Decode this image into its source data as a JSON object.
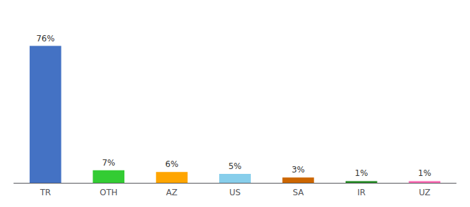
{
  "chart_data": {
    "type": "bar",
    "categories": [
      "TR",
      "OTH",
      "AZ",
      "US",
      "SA",
      "IR",
      "UZ"
    ],
    "values": [
      76,
      7,
      6,
      5,
      3,
      1,
      1
    ],
    "value_labels": [
      "76%",
      "7%",
      "6%",
      "5%",
      "3%",
      "1%",
      "1%"
    ],
    "colors": [
      "#4472C4",
      "#33CC33",
      "#FFA500",
      "#87CEEB",
      "#CC6600",
      "#228B22",
      "#FF69B4"
    ],
    "ylim": [
      0,
      90
    ],
    "grid": false,
    "data_labels": true,
    "tick_labels": "x"
  }
}
